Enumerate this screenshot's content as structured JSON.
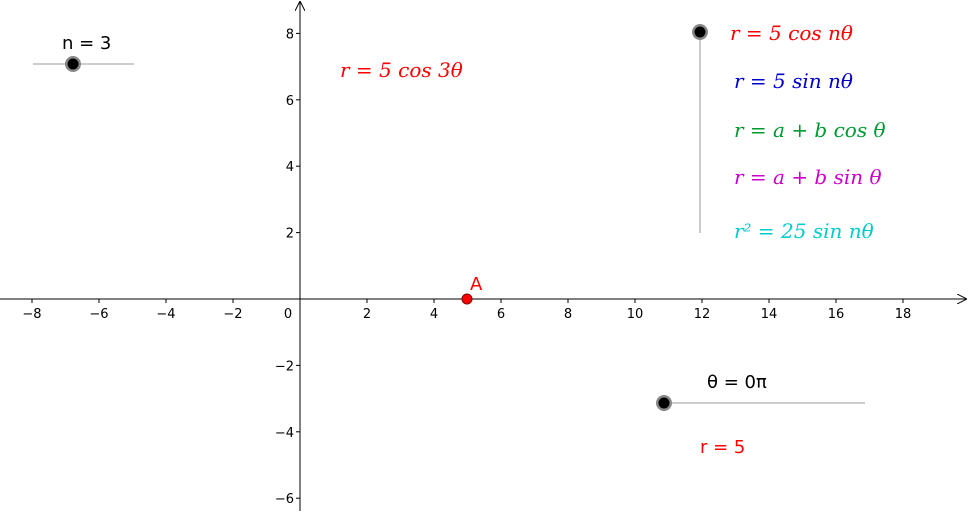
{
  "axes": {
    "x_ticks": [
      "−8",
      "−6",
      "−4",
      "−2",
      "0",
      "2",
      "4",
      "6",
      "8",
      "10",
      "12",
      "14",
      "16",
      "18"
    ],
    "y_ticks": [
      "8",
      "6",
      "4",
      "2",
      "−2",
      "−4",
      "−6"
    ]
  },
  "slider_n": {
    "label": "n = 3",
    "value": 3
  },
  "slider_theta": {
    "label": "θ = 0π",
    "value": 0
  },
  "slider_curve": {
    "selected_index": 0
  },
  "point_a": {
    "label": "A",
    "x": 5,
    "y": 0
  },
  "formulas": {
    "current": "r = 5 cos 3θ",
    "options": [
      {
        "text": "r = 5 cos nθ",
        "color": "#ff0000"
      },
      {
        "text": "r = 5 sin nθ",
        "color": "#0000cc"
      },
      {
        "text": "r = a + b cos θ",
        "color": "#009933"
      },
      {
        "text": "r = a + b sin θ",
        "color": "#cc00cc"
      },
      {
        "text": "r² = 25 sin nθ",
        "color": "#00cccc"
      }
    ]
  },
  "r_readout": "r = 5",
  "colors": {
    "accent_red": "#ff0000",
    "axis": "#000000",
    "slider_line": "#999999"
  }
}
